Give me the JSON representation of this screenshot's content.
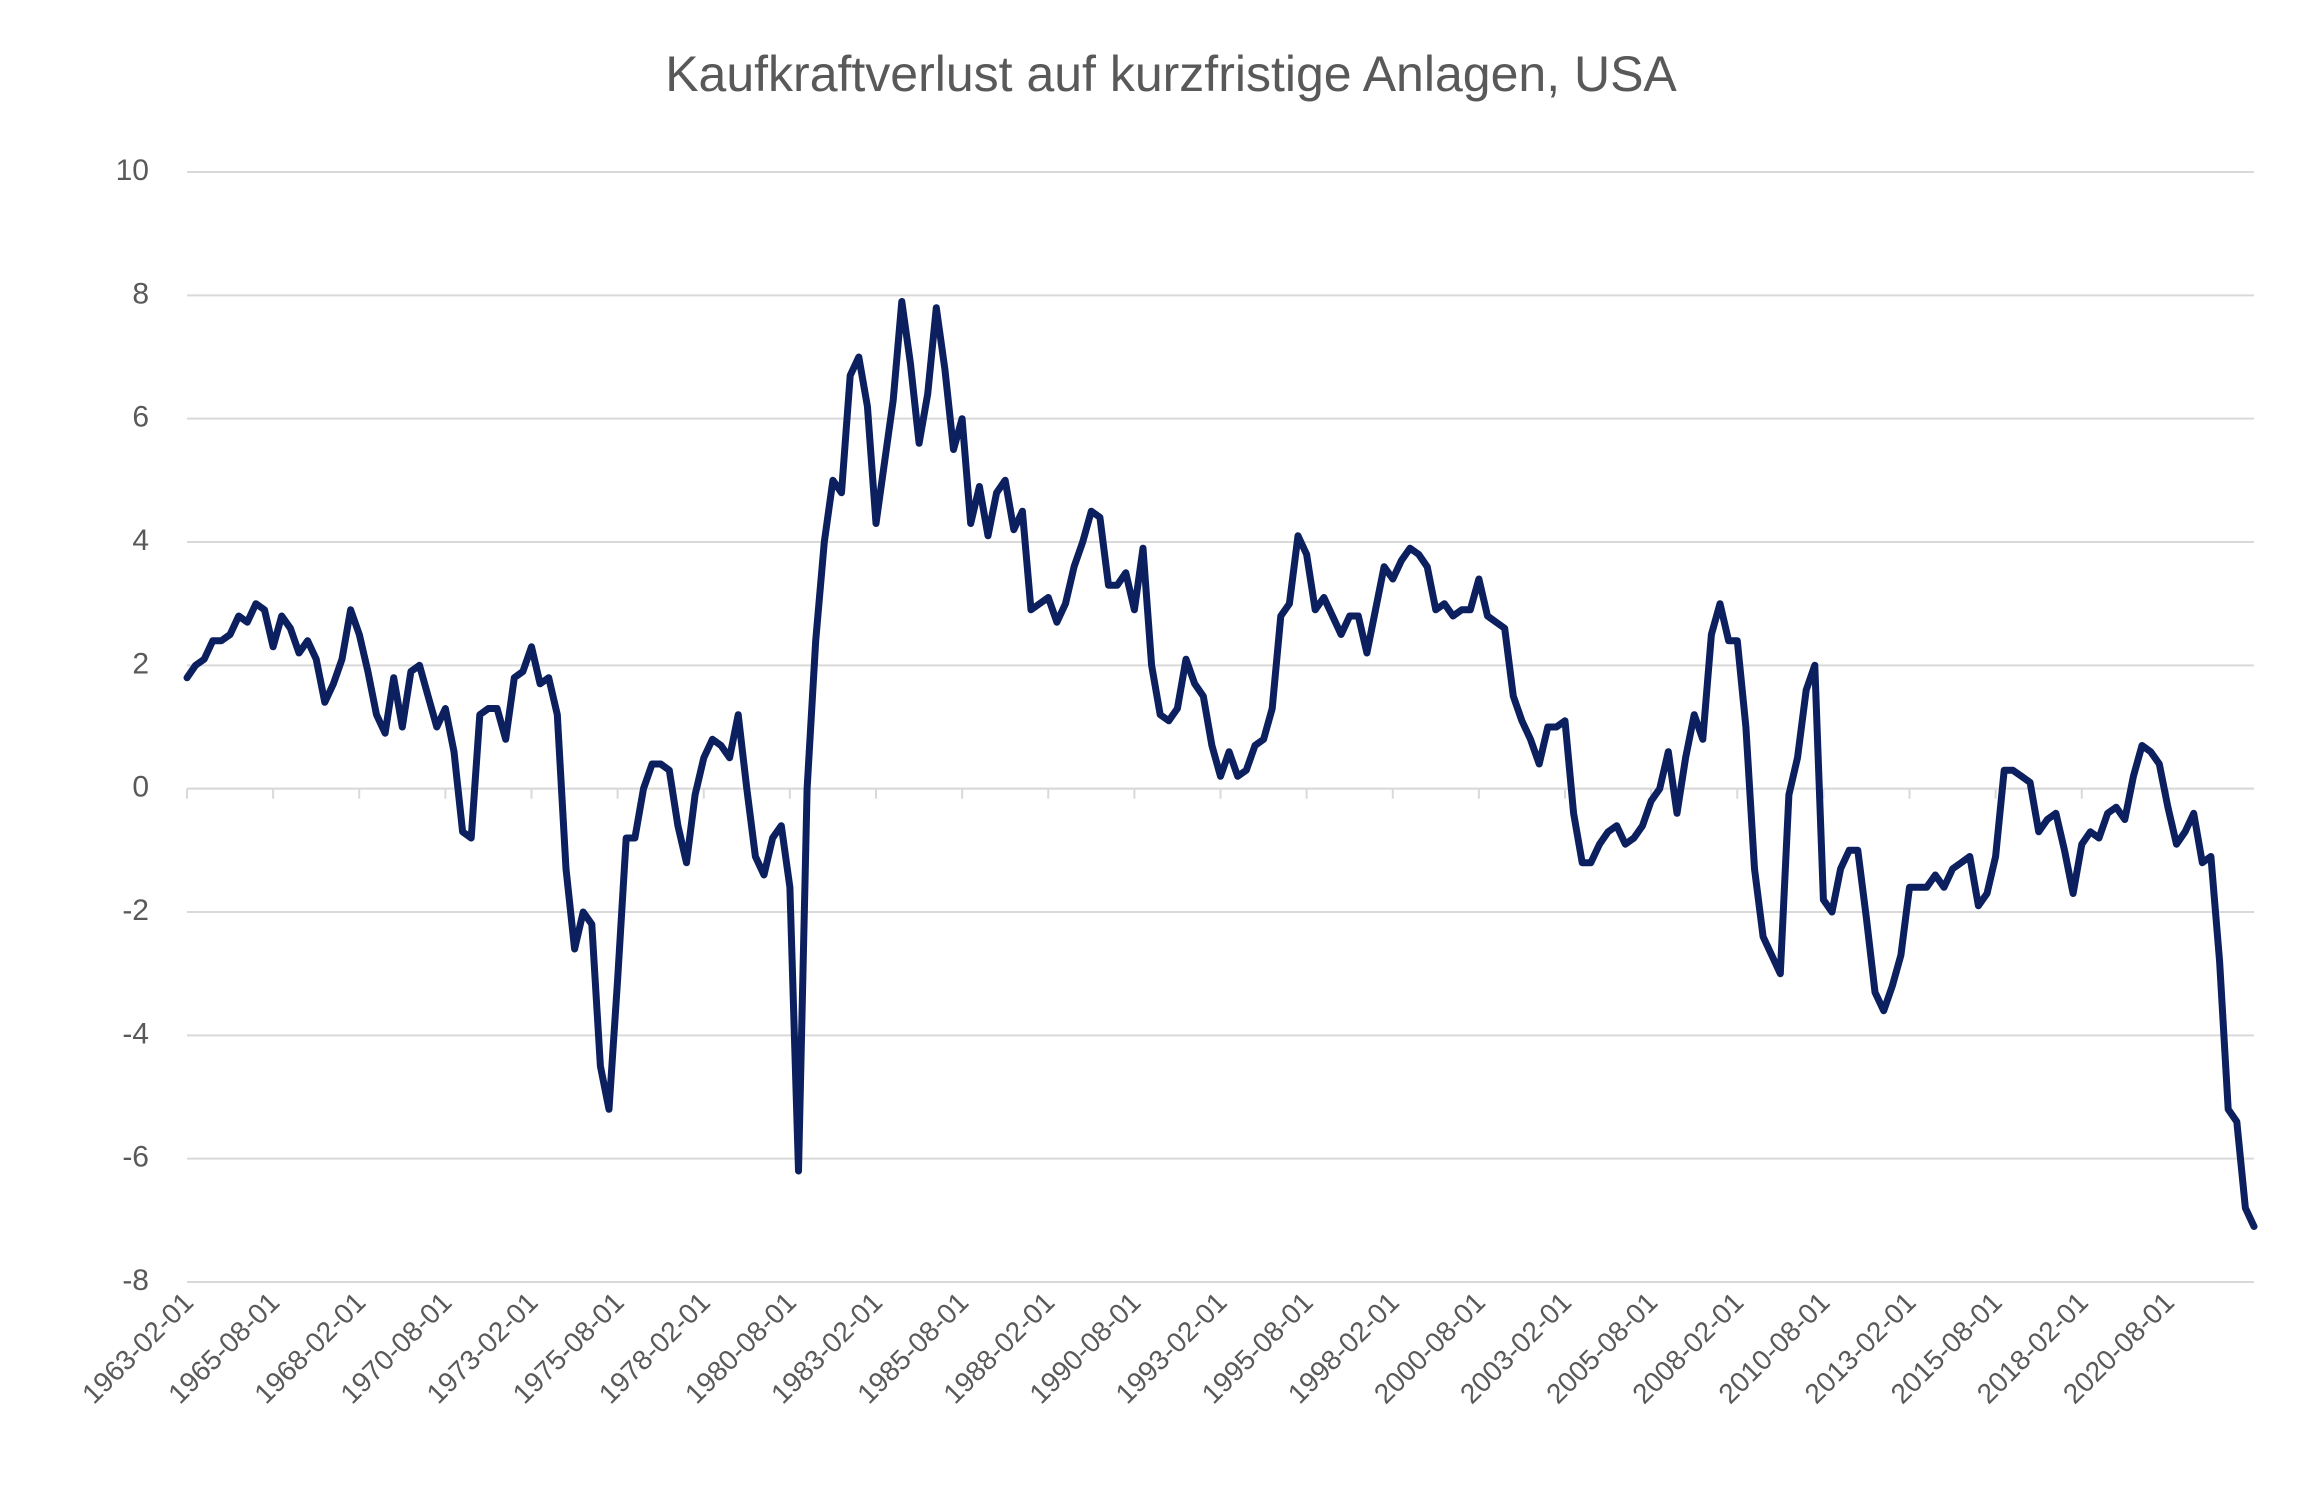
{
  "chart_data": {
    "type": "line",
    "title": "Kaufkraftverlust auf kurzfristige Anlagen, USA",
    "color": "#0c1f5e",
    "grid": true,
    "x": [
      "1963-02-01",
      "1963-05-01",
      "1963-08-01",
      "1963-11-01",
      "1964-02-01",
      "1964-05-01",
      "1964-08-01",
      "1964-11-01",
      "1965-02-01",
      "1965-05-01",
      "1965-08-01",
      "1965-11-01",
      "1966-02-01",
      "1966-05-01",
      "1966-08-01",
      "1966-11-01",
      "1967-02-01",
      "1967-05-01",
      "1967-08-01",
      "1967-11-01",
      "1968-02-01",
      "1968-05-01",
      "1968-08-01",
      "1968-11-01",
      "1969-02-01",
      "1969-05-01",
      "1969-08-01",
      "1969-11-01",
      "1970-02-01",
      "1970-05-01",
      "1970-08-01",
      "1970-11-01",
      "1971-02-01",
      "1971-05-01",
      "1971-08-01",
      "1971-11-01",
      "1972-02-01",
      "1972-05-01",
      "1972-08-01",
      "1972-11-01",
      "1973-02-01",
      "1973-05-01",
      "1973-08-01",
      "1973-11-01",
      "1974-02-01",
      "1974-05-01",
      "1974-08-01",
      "1974-11-01",
      "1975-02-01",
      "1975-05-01",
      "1975-08-01",
      "1975-11-01",
      "1976-02-01",
      "1976-05-01",
      "1976-08-01",
      "1976-11-01",
      "1977-02-01",
      "1977-05-01",
      "1977-08-01",
      "1977-11-01",
      "1978-02-01",
      "1978-05-01",
      "1978-08-01",
      "1978-11-01",
      "1979-02-01",
      "1979-05-01",
      "1979-08-01",
      "1979-11-01",
      "1980-02-01",
      "1980-05-01",
      "1980-08-01",
      "1980-11-01",
      "1981-02-01",
      "1981-05-01",
      "1981-08-01",
      "1981-11-01",
      "1982-02-01",
      "1982-05-01",
      "1982-08-01",
      "1982-11-01",
      "1983-02-01",
      "1983-05-01",
      "1983-08-01",
      "1983-11-01",
      "1984-02-01",
      "1984-05-01",
      "1984-08-01",
      "1984-11-01",
      "1985-02-01",
      "1985-05-01",
      "1985-08-01",
      "1985-11-01",
      "1986-02-01",
      "1986-05-01",
      "1986-08-01",
      "1986-11-01",
      "1987-02-01",
      "1987-05-01",
      "1987-08-01",
      "1987-11-01",
      "1988-02-01",
      "1988-05-01",
      "1988-08-01",
      "1988-11-01",
      "1989-02-01",
      "1989-05-01",
      "1989-08-01",
      "1989-11-01",
      "1990-02-01",
      "1990-05-01",
      "1990-08-01",
      "1990-11-01",
      "1991-02-01",
      "1991-05-01",
      "1991-08-01",
      "1991-11-01",
      "1992-02-01",
      "1992-05-01",
      "1992-08-01",
      "1992-11-01",
      "1993-02-01",
      "1993-05-01",
      "1993-08-01",
      "1993-11-01",
      "1994-02-01",
      "1994-05-01",
      "1994-08-01",
      "1994-11-01",
      "1995-02-01",
      "1995-05-01",
      "1995-08-01",
      "1995-11-01",
      "1996-02-01",
      "1996-05-01",
      "1996-08-01",
      "1996-11-01",
      "1997-02-01",
      "1997-05-01",
      "1997-08-01",
      "1997-11-01",
      "1998-02-01",
      "1998-05-01",
      "1998-08-01",
      "1998-11-01",
      "1999-02-01",
      "1999-05-01",
      "1999-08-01",
      "1999-11-01",
      "2000-02-01",
      "2000-05-01",
      "2000-08-01",
      "2000-11-01",
      "2001-02-01",
      "2001-05-01",
      "2001-08-01",
      "2001-11-01",
      "2002-02-01",
      "2002-05-01",
      "2002-08-01",
      "2002-11-01",
      "2003-02-01",
      "2003-05-01",
      "2003-08-01",
      "2003-11-01",
      "2004-02-01",
      "2004-05-01",
      "2004-08-01",
      "2004-11-01",
      "2005-02-01",
      "2005-05-01",
      "2005-08-01",
      "2005-11-01",
      "2006-02-01",
      "2006-05-01",
      "2006-08-01",
      "2006-11-01",
      "2007-02-01",
      "2007-05-01",
      "2007-08-01",
      "2007-11-01",
      "2008-02-01",
      "2008-05-01",
      "2008-08-01",
      "2008-11-01",
      "2009-02-01",
      "2009-05-01",
      "2009-08-01",
      "2009-11-01",
      "2010-02-01",
      "2010-05-01",
      "2010-08-01",
      "2010-11-01",
      "2011-02-01",
      "2011-05-01",
      "2011-08-01",
      "2011-11-01",
      "2012-02-01",
      "2012-05-01",
      "2012-08-01",
      "2012-11-01",
      "2013-02-01",
      "2013-05-01",
      "2013-08-01",
      "2013-11-01",
      "2014-02-01",
      "2014-05-01",
      "2014-08-01",
      "2014-11-01",
      "2015-02-01",
      "2015-05-01",
      "2015-08-01",
      "2015-11-01",
      "2016-02-01",
      "2016-05-01",
      "2016-08-01",
      "2016-11-01",
      "2017-02-01",
      "2017-05-01",
      "2017-08-01",
      "2017-11-01",
      "2018-02-01",
      "2018-05-01",
      "2018-08-01",
      "2018-11-01",
      "2019-02-01",
      "2019-05-01",
      "2019-08-01",
      "2019-11-01",
      "2020-02-01",
      "2020-05-01",
      "2020-08-01",
      "2020-11-01",
      "2021-02-01",
      "2021-05-01",
      "2021-08-01",
      "2021-11-01",
      "2022-02-01",
      "2022-05-01",
      "2022-08-01",
      "2022-11-01",
      "2023-02-01"
    ],
    "values": [
      1.8,
      2.0,
      2.1,
      2.4,
      2.4,
      2.5,
      2.8,
      2.7,
      3.0,
      2.9,
      2.3,
      2.8,
      2.6,
      2.2,
      2.4,
      2.1,
      1.4,
      1.7,
      2.1,
      2.9,
      2.5,
      1.9,
      1.2,
      0.9,
      1.8,
      1.0,
      1.9,
      2.0,
      1.5,
      1.0,
      1.3,
      0.6,
      -0.7,
      -0.8,
      1.2,
      1.3,
      1.3,
      0.8,
      1.8,
      1.9,
      2.3,
      1.7,
      1.8,
      1.2,
      -1.3,
      -2.6,
      -2.0,
      -2.2,
      -4.5,
      -5.2,
      -3.1,
      -0.8,
      -0.8,
      0.0,
      0.4,
      0.4,
      0.3,
      -0.6,
      -1.2,
      -0.1,
      0.5,
      0.8,
      0.7,
      0.5,
      1.2,
      0.0,
      -1.1,
      -1.4,
      -0.8,
      -0.6,
      -1.6,
      -6.2,
      0.0,
      2.4,
      4.0,
      5.0,
      4.8,
      6.7,
      7.0,
      6.2,
      4.3,
      5.3,
      6.3,
      7.9,
      6.9,
      5.6,
      6.4,
      7.8,
      6.8,
      5.5,
      6.0,
      4.3,
      4.9,
      4.1,
      4.8,
      5.0,
      4.2,
      4.5,
      2.9,
      3.0,
      3.1,
      2.7,
      3.0,
      3.6,
      4.0,
      4.5,
      4.4,
      3.3,
      3.3,
      3.5,
      2.9,
      3.9,
      2.0,
      1.2,
      1.1,
      1.3,
      2.1,
      1.7,
      1.5,
      0.7,
      0.2,
      0.6,
      0.2,
      0.3,
      0.7,
      0.8,
      1.3,
      2.8,
      3.0,
      4.1,
      3.8,
      2.9,
      3.1,
      2.8,
      2.5,
      2.8,
      2.8,
      2.2,
      2.9,
      3.6,
      3.4,
      3.7,
      3.9,
      3.8,
      3.6,
      2.9,
      3.0,
      2.8,
      2.9,
      2.9,
      3.4,
      2.8,
      2.7,
      2.6,
      1.5,
      1.1,
      0.8,
      0.4,
      1.0,
      1.0,
      1.1,
      -0.4,
      -1.2,
      -1.2,
      -0.9,
      -0.7,
      -0.6,
      -0.9,
      -0.8,
      -0.6,
      -0.2,
      0.0,
      0.6,
      -0.4,
      0.5,
      1.2,
      0.8,
      2.5,
      3.0,
      2.4,
      2.4,
      1.0,
      -1.3,
      -2.4,
      -2.7,
      -3.0,
      -0.1,
      0.5,
      1.6,
      2.0,
      -1.8,
      -2.0,
      -1.3,
      -1.0,
      -1.0,
      -2.1,
      -3.3,
      -3.6,
      -3.2,
      -2.7,
      -1.6,
      -1.6,
      -1.6,
      -1.4,
      -1.6,
      -1.3,
      -1.2,
      -1.1,
      -1.9,
      -1.7,
      -1.1,
      0.3,
      0.3,
      0.2,
      0.1,
      -0.7,
      -0.5,
      -0.4,
      -1.0,
      -1.7,
      -0.9,
      -0.7,
      -0.8,
      -0.4,
      -0.3,
      -0.5,
      0.2,
      0.7,
      0.6,
      0.4,
      -0.3,
      -0.9,
      -0.7,
      -0.4,
      -1.2,
      -1.1,
      -2.8,
      -5.2,
      -5.4,
      -6.8,
      -7.1
    ],
    "xlim": [
      "1963-02-01",
      "2023-02-01"
    ],
    "xticks": [
      "1963-02-01",
      "1965-08-01",
      "1968-02-01",
      "1970-08-01",
      "1973-02-01",
      "1975-08-01",
      "1978-02-01",
      "1980-08-01",
      "1983-02-01",
      "1985-08-01",
      "1988-02-01",
      "1990-08-01",
      "1993-02-01",
      "1995-08-01",
      "1998-02-01",
      "2000-08-01",
      "2003-02-01",
      "2005-08-01",
      "2008-02-01",
      "2010-08-01",
      "2013-02-01",
      "2015-08-01",
      "2018-02-01",
      "2020-08-01"
    ],
    "ylim": [
      -8,
      10
    ],
    "yticks": [
      -8,
      -6,
      -4,
      -2,
      0,
      2,
      4,
      6,
      8,
      10
    ]
  }
}
